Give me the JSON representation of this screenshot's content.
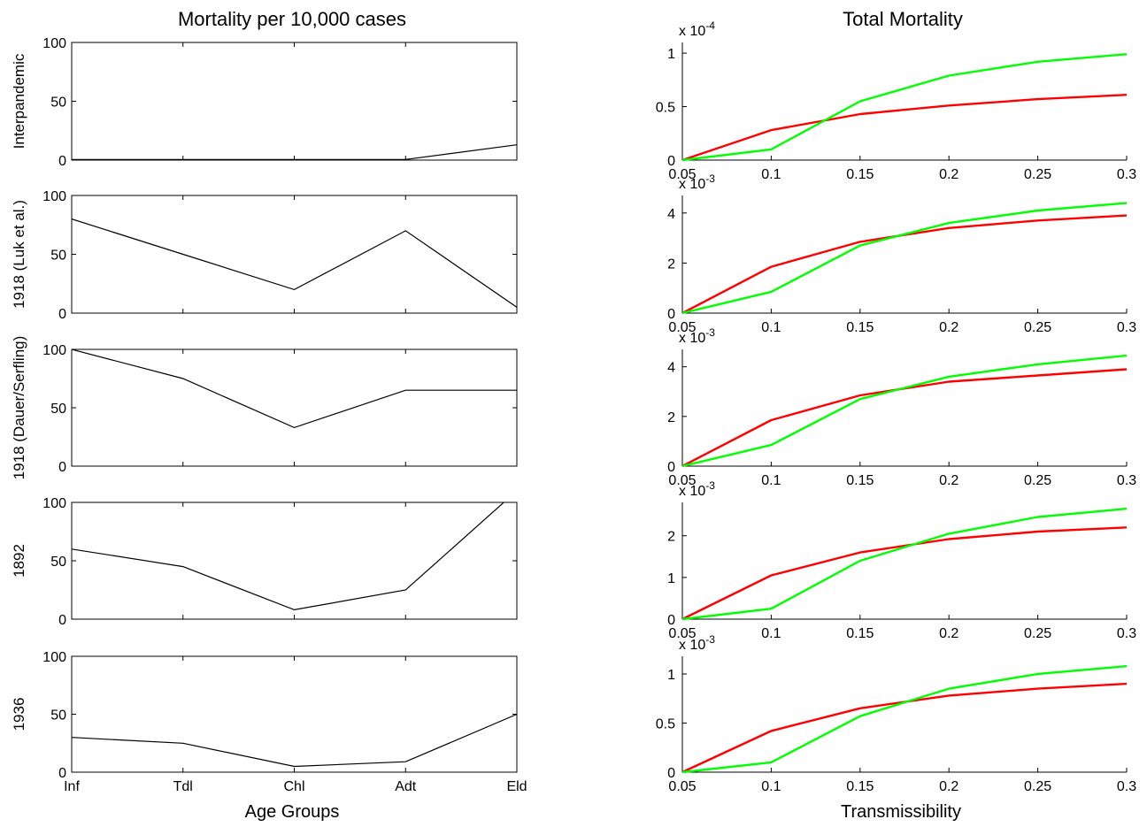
{
  "chart_data": [
    {
      "type": "line",
      "title": "Mortality per 10,000 cases",
      "xlabel": "Age Groups",
      "categories": [
        "Inf",
        "Tdl",
        "Chl",
        "Adt",
        "Eld"
      ],
      "panels": [
        {
          "ylabel": "Interpandemic",
          "ylim": [
            0,
            100
          ],
          "yticks": [
            "0",
            "50",
            "100"
          ],
          "values": [
            0.5,
            0.5,
            0.5,
            0.5,
            13
          ]
        },
        {
          "ylabel": "1918 (Luk et al.)",
          "ylim": [
            0,
            100
          ],
          "yticks": [
            "0",
            "50",
            "100"
          ],
          "values": [
            80,
            50,
            20,
            70,
            5
          ]
        },
        {
          "ylabel": "1918 (Dauer/Serfling)",
          "ylim": [
            0,
            100
          ],
          "yticks": [
            "0",
            "50",
            "100"
          ],
          "values": [
            100,
            75,
            33,
            65,
            65
          ]
        },
        {
          "ylabel": "1892",
          "ylim": [
            0,
            100
          ],
          "yticks": [
            "0",
            "50",
            "100"
          ],
          "values": [
            60,
            45,
            8,
            25,
            110
          ]
        },
        {
          "ylabel": "1936",
          "ylim": [
            0,
            100
          ],
          "yticks": [
            "0",
            "50",
            "100"
          ],
          "values": [
            30,
            25,
            5,
            9,
            50
          ]
        }
      ],
      "line_color": "#000000"
    },
    {
      "type": "line",
      "title": "Total Mortality",
      "xlabel": "Transmissibility",
      "x": [
        0.05,
        0.1,
        0.15,
        0.2,
        0.25,
        0.3
      ],
      "xticks": [
        "0.05",
        "0.1",
        "0.15",
        "0.2",
        "0.25",
        "0.3"
      ],
      "colors": {
        "red": "#ff0000",
        "green": "#00ff00"
      },
      "panels": [
        {
          "exponent": "x 10",
          "exponent_power": "-4",
          "ylim": [
            0,
            1.1
          ],
          "ytick_values": [
            0,
            0.5,
            1
          ],
          "yticks": [
            "0",
            "0.5",
            "1"
          ],
          "series": [
            {
              "color": "red",
              "values": [
                0,
                0.28,
                0.43,
                0.51,
                0.57,
                0.61
              ]
            },
            {
              "color": "green",
              "values": [
                0,
                0.1,
                0.55,
                0.79,
                0.92,
                0.99
              ]
            }
          ]
        },
        {
          "exponent": "x 10",
          "exponent_power": "-3",
          "ylim": [
            0,
            4.7
          ],
          "ytick_values": [
            0,
            2,
            4
          ],
          "yticks": [
            "0",
            "2",
            "4"
          ],
          "series": [
            {
              "color": "red",
              "values": [
                0,
                1.85,
                2.85,
                3.4,
                3.7,
                3.9
              ]
            },
            {
              "color": "green",
              "values": [
                0,
                0.85,
                2.7,
                3.6,
                4.1,
                4.4
              ]
            }
          ]
        },
        {
          "exponent": "x 10",
          "exponent_power": "-3",
          "ylim": [
            0,
            4.7
          ],
          "ytick_values": [
            0,
            2,
            4
          ],
          "yticks": [
            "0",
            "2",
            "4"
          ],
          "series": [
            {
              "color": "red",
              "values": [
                0,
                1.85,
                2.85,
                3.4,
                3.65,
                3.9
              ]
            },
            {
              "color": "green",
              "values": [
                0,
                0.85,
                2.7,
                3.6,
                4.1,
                4.45
              ]
            }
          ]
        },
        {
          "exponent": "x 10",
          "exponent_power": "-3",
          "ylim": [
            0,
            2.8
          ],
          "ytick_values": [
            0,
            1,
            2
          ],
          "yticks": [
            "0",
            "1",
            "2"
          ],
          "series": [
            {
              "color": "red",
              "values": [
                0,
                1.05,
                1.6,
                1.92,
                2.1,
                2.2
              ]
            },
            {
              "color": "green",
              "values": [
                0,
                0.25,
                1.4,
                2.05,
                2.45,
                2.65
              ]
            }
          ]
        },
        {
          "exponent": "x 10",
          "exponent_power": "-3",
          "ylim": [
            0,
            1.18
          ],
          "ytick_values": [
            0,
            0.5,
            1
          ],
          "yticks": [
            "0",
            "0.5",
            "1"
          ],
          "series": [
            {
              "color": "red",
              "values": [
                0,
                0.42,
                0.65,
                0.78,
                0.85,
                0.9
              ]
            },
            {
              "color": "green",
              "values": [
                0,
                0.1,
                0.57,
                0.85,
                1.0,
                1.08
              ]
            }
          ]
        }
      ]
    }
  ]
}
